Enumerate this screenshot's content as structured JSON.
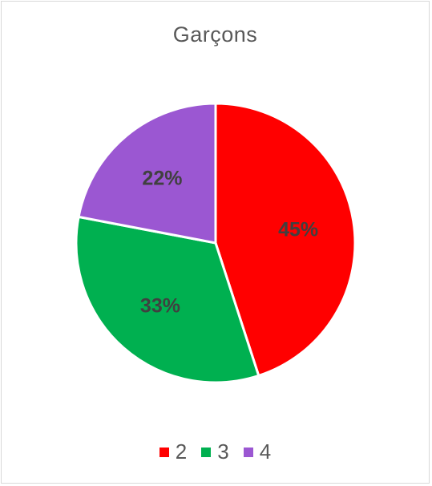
{
  "chart_data": {
    "type": "pie",
    "title": "Garçons",
    "categories": [
      "2",
      "3",
      "4"
    ],
    "values": [
      45,
      33,
      22
    ],
    "labels": [
      "45%",
      "33%",
      "22%"
    ],
    "colors": [
      "#ff0000",
      "#00b050",
      "#9b57d2"
    ],
    "legend_position": "bottom",
    "start_angle": "12 o'clock",
    "direction": "clockwise"
  }
}
